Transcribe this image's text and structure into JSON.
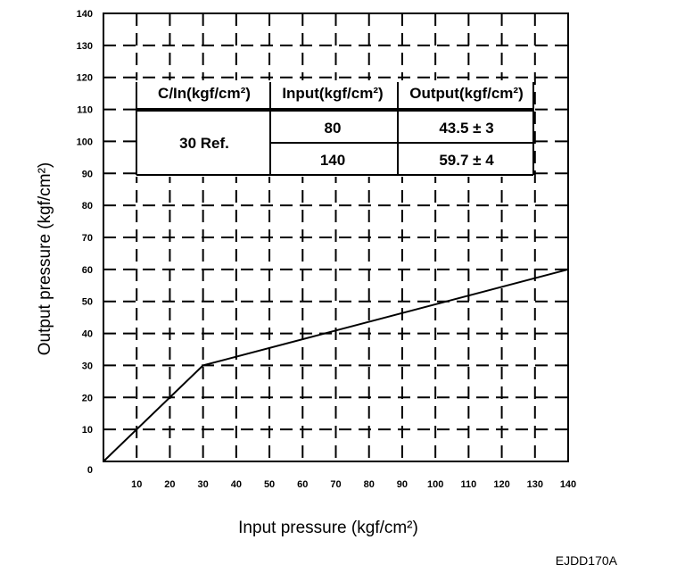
{
  "chart_data": {
    "type": "line",
    "xlabel": "Input pressure (kgf/cm²)",
    "ylabel": "Output pressure (kgf/cm²)",
    "xlim": [
      0,
      140
    ],
    "ylim": [
      0,
      140
    ],
    "x_ticks": [
      10,
      20,
      30,
      40,
      50,
      60,
      70,
      80,
      90,
      100,
      110,
      120,
      130,
      140
    ],
    "y_ticks": [
      0,
      10,
      20,
      30,
      40,
      50,
      60,
      70,
      80,
      90,
      100,
      110,
      120,
      130,
      140
    ],
    "grid": true,
    "grid_style": "dashed",
    "series": [
      {
        "x": [
          0,
          30,
          140
        ],
        "y": [
          0,
          30,
          60
        ],
        "color": "#000000"
      }
    ],
    "table": {
      "headers": [
        "C/In(kgf/cm²)",
        "Input(kgf/cm²)",
        "Output(kgf/cm²)"
      ],
      "cutin": "30 Ref.",
      "rows": [
        {
          "input": "80",
          "output": "43.5 ± 3"
        },
        {
          "input": "140",
          "output": "59.7 ± 4"
        }
      ]
    }
  },
  "figure_code": "EJDD170A"
}
